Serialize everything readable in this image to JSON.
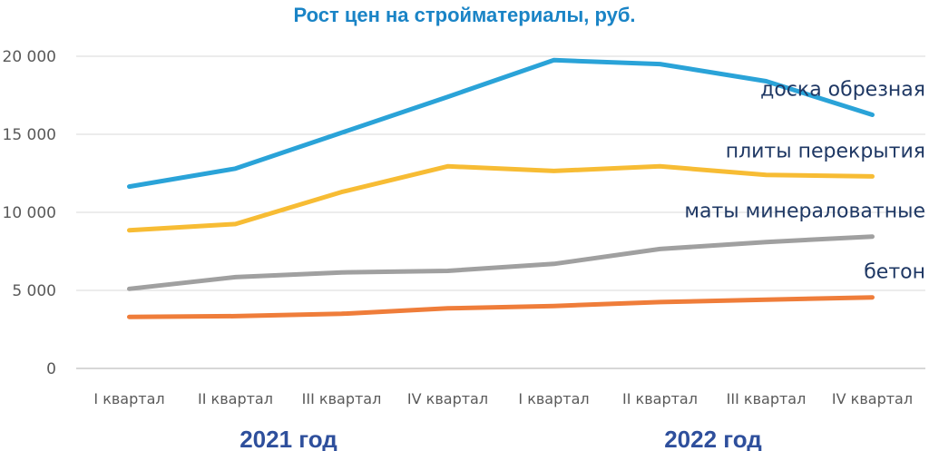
{
  "chart_data": {
    "type": "line",
    "title": "Рост цен на стройматериалы, руб.",
    "xlabel": "",
    "ylabel": "",
    "ylim": [
      0,
      20000
    ],
    "yticks": [
      0,
      5000,
      10000,
      15000,
      20000
    ],
    "ytick_labels": [
      "0",
      "5 000",
      "10 000",
      "15 000",
      "20 000"
    ],
    "grid": true,
    "categories": [
      "I квартал",
      "II квартал",
      "III квартал",
      "IV квартал",
      "I квартал",
      "II квартал",
      "III квартал",
      "IV квартал"
    ],
    "groups": [
      {
        "label": "2021 год",
        "from": 0,
        "to": 3
      },
      {
        "label": "2022 год",
        "from": 4,
        "to": 7
      }
    ],
    "series": [
      {
        "name": "доска обрезная",
        "color": "#2aa3d8",
        "values": [
          11650,
          12800,
          15100,
          17400,
          19750,
          19500,
          18400,
          16250
        ]
      },
      {
        "name": "плиты перекрытия",
        "color": "#f7bc34",
        "values": [
          8850,
          9250,
          11300,
          12950,
          12650,
          12950,
          12400,
          12300
        ]
      },
      {
        "name": "маты минераловатные",
        "color": "#a0a0a0",
        "values": [
          5100,
          5850,
          6150,
          6250,
          6700,
          7650,
          8100,
          8450
        ]
      },
      {
        "name": "бетон",
        "color": "#ef7d3a",
        "values": [
          3300,
          3350,
          3500,
          3850,
          4000,
          4250,
          4400,
          4550
        ]
      }
    ]
  }
}
